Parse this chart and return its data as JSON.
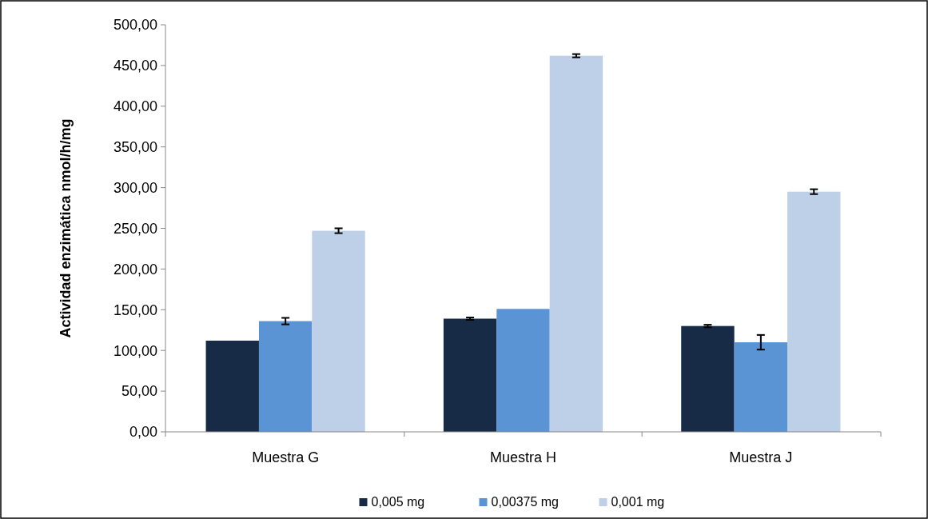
{
  "chart_data": {
    "type": "bar",
    "ylabel": "Actividad enzimática nmol/h/mg",
    "categories": [
      "Muestra G",
      "Muestra H",
      "Muestra J"
    ],
    "series": [
      {
        "name": "0,005 mg",
        "color": "#172b46",
        "values": [
          112,
          139,
          130
        ],
        "errors": [
          null,
          1.5,
          1.5
        ]
      },
      {
        "name": "0,00375 mg",
        "color": "#5b94d5",
        "values": [
          136,
          151,
          110
        ],
        "errors": [
          4,
          null,
          9
        ]
      },
      {
        "name": "0,001 mg",
        "color": "#bdd0e8",
        "values": [
          247,
          462,
          295
        ],
        "errors": [
          3,
          2,
          3
        ]
      }
    ],
    "ylim": [
      0,
      500
    ],
    "yticks": [
      {
        "value": 0,
        "label": "0,00"
      },
      {
        "value": 50,
        "label": "50,00"
      },
      {
        "value": 100,
        "label": "100,00"
      },
      {
        "value": 150,
        "label": "150,00"
      },
      {
        "value": 200,
        "label": "200,00"
      },
      {
        "value": 250,
        "label": "250,00"
      },
      {
        "value": 300,
        "label": "300,00"
      },
      {
        "value": 350,
        "label": "350,00"
      },
      {
        "value": 400,
        "label": "400,00"
      },
      {
        "value": 450,
        "label": "450,00"
      },
      {
        "value": 500,
        "label": "500,00"
      }
    ],
    "grid": false,
    "legend": "bottom"
  }
}
